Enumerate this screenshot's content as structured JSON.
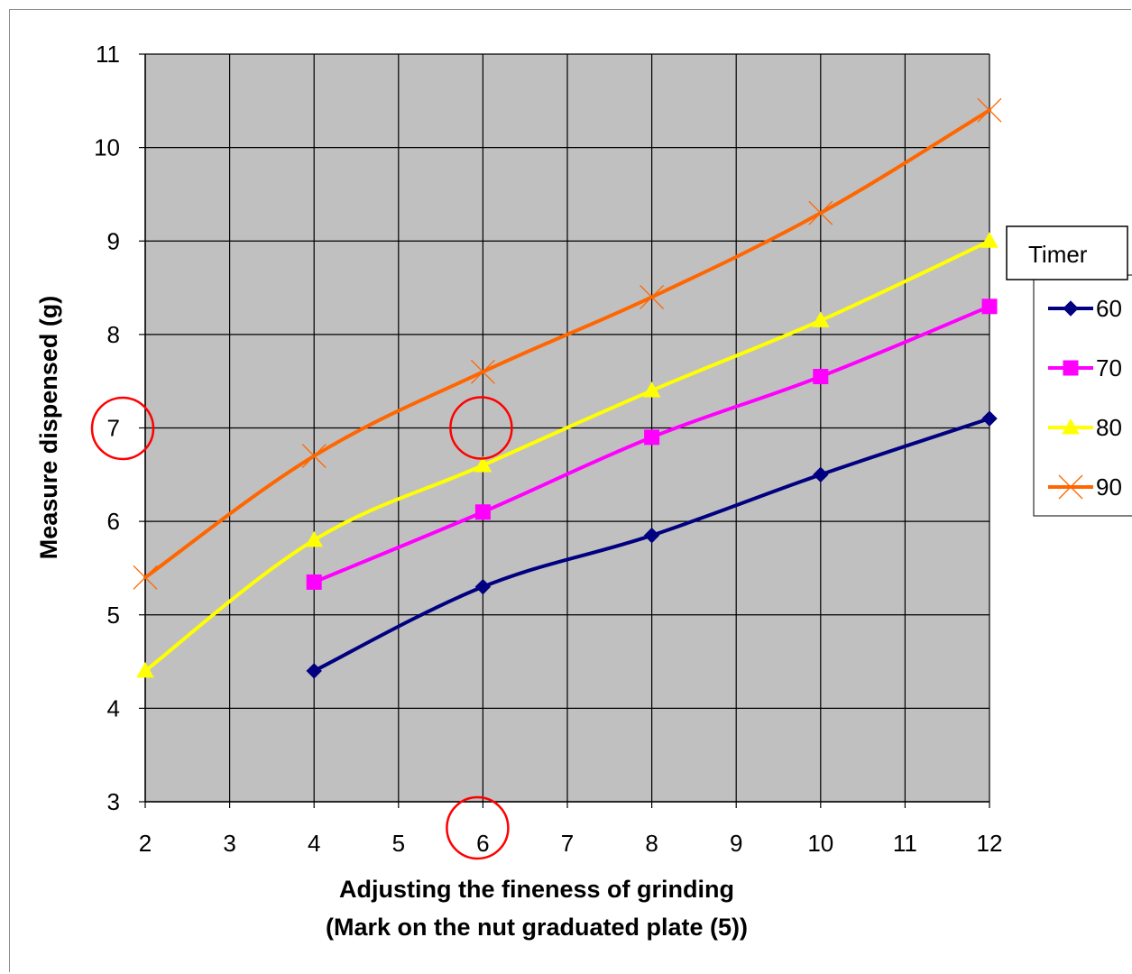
{
  "chart_data": {
    "type": "line",
    "title": "",
    "xlabel_line1": "Adjusting the fineness of grinding",
    "xlabel_line2": "(Mark on the nut graduated plate (5))",
    "ylabel": "Measure dispensed (g)",
    "xlim": [
      2,
      12
    ],
    "ylim": [
      3,
      11
    ],
    "x_ticks": [
      "2",
      "3",
      "4",
      "5",
      "6",
      "7",
      "8",
      "9",
      "10",
      "11",
      "12"
    ],
    "y_ticks": [
      "3",
      "4",
      "5",
      "6",
      "7",
      "8",
      "9",
      "10",
      "11"
    ],
    "grid": true,
    "plot_background": "#c0c0c0",
    "legend": {
      "title": "Timer",
      "placement": "right"
    },
    "series": [
      {
        "name": "60",
        "color": "#000080",
        "marker": "diamond",
        "x": [
          4,
          6,
          8,
          10,
          12
        ],
        "y": [
          4.4,
          5.3,
          5.85,
          6.5,
          7.1
        ]
      },
      {
        "name": "70",
        "color": "#ff00ff",
        "marker": "square",
        "x": [
          4,
          6,
          8,
          10,
          12
        ],
        "y": [
          5.35,
          6.1,
          6.9,
          7.55,
          8.3
        ]
      },
      {
        "name": "80",
        "color": "#ffff00",
        "marker": "triangle",
        "x": [
          2,
          4,
          6,
          8,
          10,
          12
        ],
        "y": [
          4.4,
          5.8,
          6.6,
          7.4,
          8.15,
          9.0
        ]
      },
      {
        "name": "90",
        "color": "#ff6600",
        "marker": "x",
        "x": [
          2,
          4,
          6,
          8,
          10,
          12
        ],
        "y": [
          5.4,
          6.7,
          7.6,
          8.4,
          9.3,
          10.4
        ]
      }
    ],
    "annotations": [
      {
        "type": "circle",
        "color": "#ff0000",
        "target": "y-axis tick 7"
      },
      {
        "type": "circle",
        "color": "#ff0000",
        "target": "point x=6, y=7"
      },
      {
        "type": "circle",
        "color": "#ff0000",
        "target": "x-axis tick 6"
      }
    ]
  }
}
